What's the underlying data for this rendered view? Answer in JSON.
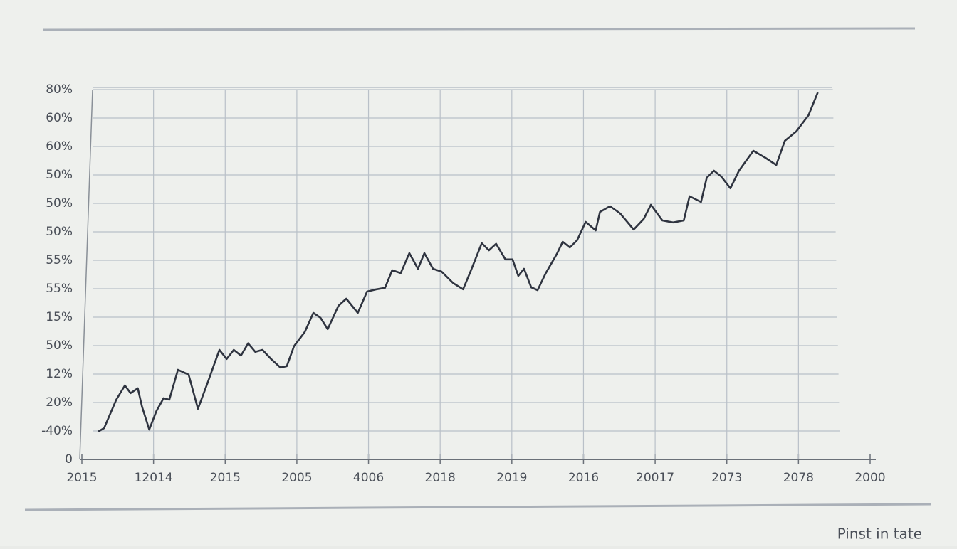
{
  "chart_data": {
    "type": "line",
    "annotation": "Pinst in tate",
    "color": "#2f3440",
    "grid": true,
    "xlim": [
      0,
      11
    ],
    "ylim": [
      0,
      13
    ],
    "xticks": [
      {
        "value": 0,
        "label": "2015"
      },
      {
        "value": 1,
        "label": "12014"
      },
      {
        "value": 2,
        "label": "2015"
      },
      {
        "value": 3,
        "label": "2005"
      },
      {
        "value": 4,
        "label": "4006"
      },
      {
        "value": 5,
        "label": "2018"
      },
      {
        "value": 6,
        "label": "2019"
      },
      {
        "value": 7,
        "label": "2016"
      },
      {
        "value": 8,
        "label": "20017"
      },
      {
        "value": 9,
        "label": "2073"
      },
      {
        "value": 10,
        "label": "2078"
      },
      {
        "value": 11,
        "label": "2000"
      }
    ],
    "yticks": [
      0,
      {
        "value": 1,
        "label": "-40%"
      },
      {
        "value": 2,
        "label": "20%"
      },
      {
        "value": 3,
        "label": "12%"
      },
      {
        "value": 4,
        "label": "50%"
      },
      {
        "value": 5,
        "label": "15%"
      },
      {
        "value": 6,
        "label": "55%"
      },
      {
        "value": 7,
        "label": "55%"
      },
      {
        "value": 8,
        "label": "50%"
      },
      {
        "value": 9,
        "label": "50%"
      },
      {
        "value": 10,
        "label": "50%"
      },
      {
        "value": 11,
        "label": "60%"
      },
      {
        "value": 12,
        "label": "60%"
      },
      {
        "value": 13,
        "label": "80%"
      }
    ],
    "x": [
      0.23,
      0.31,
      0.37,
      0.48,
      0.6,
      0.68,
      0.78,
      0.84,
      0.94,
      1.04,
      1.14,
      1.22,
      1.34,
      1.49,
      1.62,
      1.76,
      1.84,
      1.92,
      2.02,
      2.12,
      2.22,
      2.32,
      2.42,
      2.52,
      2.64,
      2.77,
      2.86,
      2.96,
      3.11,
      3.23,
      3.33,
      3.43,
      3.58,
      3.69,
      3.85,
      3.98,
      4.11,
      4.23,
      4.33,
      4.45,
      4.57,
      4.69,
      4.78,
      4.9,
      5.02,
      5.18,
      5.32,
      5.42,
      5.58,
      5.68,
      5.78,
      5.91,
      6.01,
      6.09,
      6.17,
      6.27,
      6.36,
      6.47,
      6.63,
      6.71,
      6.81,
      6.91,
      7.03,
      7.17,
      7.23,
      7.37,
      7.51,
      7.7,
      7.84,
      7.94,
      8.1,
      8.25,
      8.4,
      8.48,
      8.64,
      8.72,
      8.82,
      8.92,
      9.05,
      9.17,
      9.37,
      9.54,
      9.69,
      9.81,
      9.97,
      10.14,
      10.27
    ],
    "values": [
      0.98,
      1.1,
      1.45,
      2.1,
      2.6,
      2.33,
      2.5,
      1.85,
      1.05,
      1.7,
      2.15,
      2.1,
      3.15,
      2.98,
      1.78,
      2.73,
      3.3,
      3.85,
      3.53,
      3.85,
      3.65,
      4.08,
      3.78,
      3.85,
      3.53,
      3.23,
      3.28,
      3.98,
      4.48,
      5.15,
      4.98,
      4.58,
      5.4,
      5.65,
      5.15,
      5.9,
      5.98,
      6.03,
      6.65,
      6.55,
      7.25,
      6.7,
      7.25,
      6.7,
      6.6,
      6.2,
      5.98,
      6.58,
      7.6,
      7.35,
      7.58,
      7.03,
      7.03,
      6.45,
      6.7,
      6.05,
      5.95,
      6.53,
      7.23,
      7.65,
      7.45,
      7.7,
      8.35,
      8.05,
      8.7,
      8.9,
      8.65,
      8.08,
      8.45,
      8.95,
      8.4,
      8.33,
      8.4,
      9.25,
      9.05,
      9.9,
      10.15,
      9.95,
      9.53,
      10.15,
      10.85,
      10.6,
      10.35,
      11.2,
      11.53,
      12.1,
      12.9
    ]
  }
}
